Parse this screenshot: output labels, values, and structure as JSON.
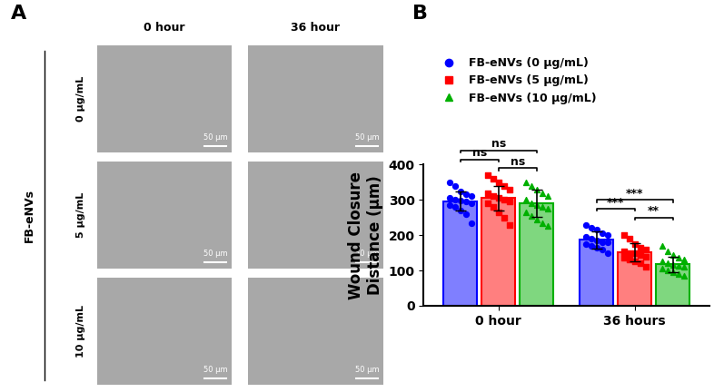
{
  "panels": [
    "A",
    "B"
  ],
  "panel_a": {
    "columns": [
      "0 hour",
      "36 hour"
    ],
    "rows": [
      "0 μg/mL",
      "5 μg/mL",
      "10 μg/mL"
    ],
    "group_label": "FB-eNVs",
    "scale_bar": "50 μm"
  },
  "chart_data": {
    "type": "bar",
    "y_label": "Wound Closure\nDistance (μm)",
    "categories": [
      "0 hour",
      "36 hours"
    ],
    "ylim": [
      0,
      400
    ],
    "yticks": [
      0,
      100,
      200,
      300,
      400
    ],
    "legend": "upper left",
    "series": [
      {
        "name": "FB-eNVs (0 μg/mL)",
        "color": "#0000ff",
        "marker": "circle",
        "values": [
          296,
          187
        ],
        "errors": [
          27,
          25
        ],
        "points": [
          [
            350,
            340,
            325,
            315,
            310,
            305,
            300,
            298,
            295,
            290,
            285,
            280,
            270,
            260,
            235
          ],
          [
            230,
            220,
            215,
            205,
            200,
            195,
            190,
            185,
            180,
            180,
            175,
            170,
            165,
            160,
            150
          ]
        ]
      },
      {
        "name": "FB-eNVs (5 μg/mL)",
        "color": "#ff0000",
        "marker": "square",
        "values": [
          305,
          152
        ],
        "errors": [
          35,
          25
        ],
        "points": [
          [
            370,
            360,
            350,
            340,
            330,
            320,
            310,
            305,
            300,
            295,
            290,
            280,
            265,
            250,
            230
          ],
          [
            200,
            190,
            175,
            165,
            160,
            155,
            150,
            148,
            145,
            140,
            135,
            130,
            125,
            120,
            110
          ]
        ]
      },
      {
        "name": "FB-eNVs (10 μg/mL)",
        "color": "#00b000",
        "marker": "triangle",
        "values": [
          291,
          117
        ],
        "errors": [
          38,
          22
        ],
        "points": [
          [
            350,
            340,
            330,
            320,
            310,
            300,
            290,
            285,
            280,
            275,
            265,
            255,
            245,
            235,
            225
          ],
          [
            170,
            155,
            145,
            135,
            130,
            125,
            120,
            115,
            112,
            110,
            105,
            100,
            95,
            90,
            85
          ]
        ]
      }
    ],
    "annotations": [
      {
        "category": "0 hour",
        "between": [
          "FB-eNVs (5 μg/mL)",
          "FB-eNVs (10 μg/mL)"
        ],
        "text": "ns"
      },
      {
        "category": "0 hour",
        "between": [
          "FB-eNVs (0 μg/mL)",
          "FB-eNVs (5 μg/mL)"
        ],
        "text": "ns"
      },
      {
        "category": "0 hour",
        "between": [
          "FB-eNVs (0 μg/mL)",
          "FB-eNVs (10 μg/mL)"
        ],
        "text": "ns"
      },
      {
        "category": "36 hours",
        "between": [
          "FB-eNVs (5 μg/mL)",
          "FB-eNVs (10 μg/mL)"
        ],
        "text": "**"
      },
      {
        "category": "36 hours",
        "between": [
          "FB-eNVs (0 μg/mL)",
          "FB-eNVs (5 μg/mL)"
        ],
        "text": "***"
      },
      {
        "category": "36 hours",
        "between": [
          "FB-eNVs (0 μg/mL)",
          "FB-eNVs (10 μg/mL)"
        ],
        "text": "***"
      }
    ]
  }
}
